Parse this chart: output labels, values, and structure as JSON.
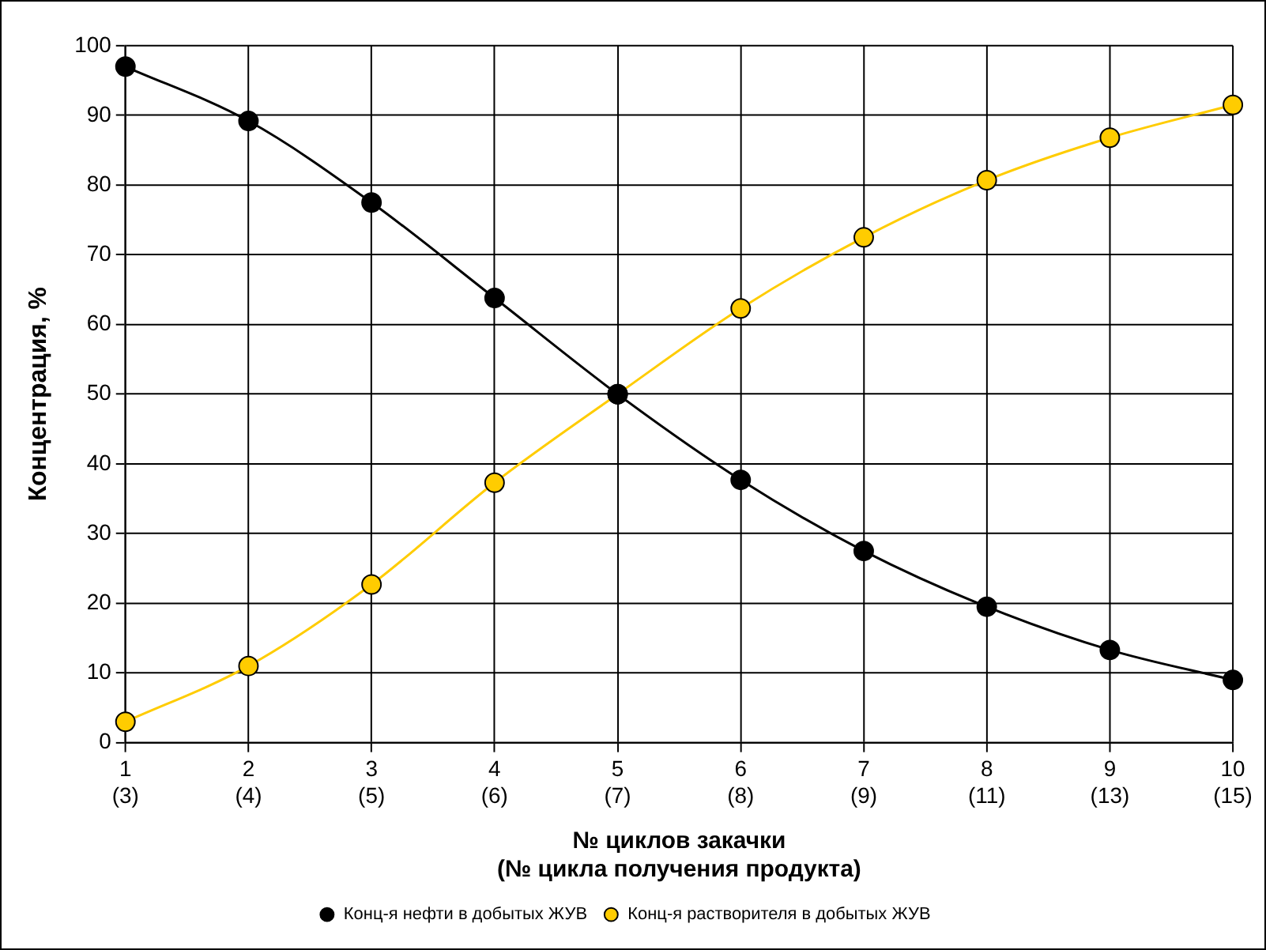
{
  "chart_data": {
    "type": "line",
    "xlabel": "№ циклов закачки\n(№ цикла получения продукта)",
    "ylabel": "Концентрация, %",
    "categories": [
      "1\n(3)",
      "2\n(4)",
      "3\n(5)",
      "4\n(6)",
      "5\n(7)",
      "6\n(8)",
      "7\n(9)",
      "8\n(11)",
      "9\n(13)",
      "10\n(15)"
    ],
    "series": [
      {
        "name": "Конц-я нефти в добытых ЖУВ",
        "color": "#000000",
        "values": [
          97,
          89.2,
          77.5,
          63.8,
          50,
          37.7,
          27.5,
          19.5,
          13.3,
          9
        ]
      },
      {
        "name": "Конц-я растворителя в добытых ЖУВ",
        "color": "#ffcc00",
        "values": [
          3,
          11,
          22.7,
          37.3,
          50,
          62.3,
          72.5,
          80.7,
          86.8,
          91.5
        ]
      }
    ],
    "ylim": [
      0,
      100
    ],
    "yticks": [
      0,
      10,
      20,
      30,
      40,
      50,
      60,
      70,
      80,
      90,
      100
    ],
    "grid": true,
    "legend": "bottom",
    "marker": "circle",
    "line_style": "solid"
  }
}
